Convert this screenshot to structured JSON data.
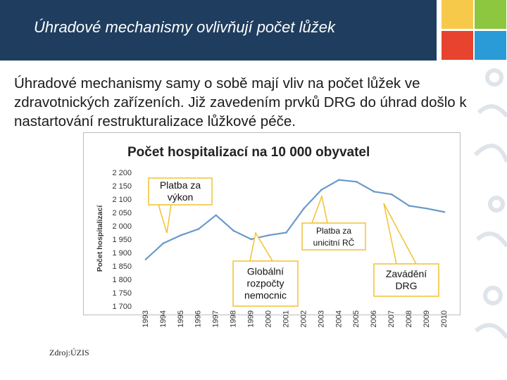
{
  "header": {
    "title": "Úhradové mechanismy ovlivňují počet lůžek"
  },
  "body": {
    "paragraph": "Úhradové mechanismy samy o sobě mají vliv na počet lůžek ve zdravotnických zařízeních. Již zavedením prvků DRG do úhrad došlo k nastartování restrukturalizace lůžkové péče."
  },
  "tiles": [
    {
      "color": "#f7c94b"
    },
    {
      "color": "#8dc63f"
    },
    {
      "color": "#e7432e"
    },
    {
      "color": "#2a9bd6"
    }
  ],
  "chart_data": {
    "type": "line",
    "title": "Počet hospitalizací na 10 000 obyvatel",
    "ylabel": "Počet hospitalizací",
    "xlabel": "",
    "ylim": [
      1700,
      2200
    ],
    "yticks": [
      "2 200",
      "2 150",
      "2 100",
      "2 050",
      "2 000",
      "1 950",
      "1 900",
      "1 850",
      "1 800",
      "1 750",
      "1 700"
    ],
    "ytick_values": [
      2200,
      2150,
      2100,
      2050,
      2000,
      1950,
      1900,
      1850,
      1800,
      1750,
      1700
    ],
    "x": [
      "1993",
      "1994",
      "1995",
      "1996",
      "1997",
      "1998",
      "1999",
      "2000",
      "2001",
      "2002",
      "2003",
      "2004",
      "2005",
      "2006",
      "2007",
      "2008",
      "2009",
      "2010"
    ],
    "series": [
      {
        "values": [
          1875,
          1935,
          1965,
          1988,
          2040,
          1982,
          1950,
          1965,
          1975,
          2065,
          2135,
          2172,
          2165,
          2128,
          2118,
          2075,
          2065,
          2052
        ],
        "color": "#6a99c9"
      }
    ],
    "grid": false,
    "legend": "none",
    "callout_color": "#f2c230",
    "annotations": [
      {
        "lines": [
          "Platba za",
          "výkon"
        ],
        "point_x": "1994",
        "point_y": 1950
      },
      {
        "lines": [
          "Platba za",
          "unicitní RČ"
        ],
        "point_x": "2003",
        "point_y": 2140
      },
      {
        "lines": [
          "Globální",
          "rozpočty",
          "nemocnic"
        ],
        "point_x": "1999",
        "point_y": 1948
      },
      {
        "lines": [
          "Zavádění",
          "DRG"
        ],
        "point_x": "2007",
        "point_y": 2118
      }
    ],
    "source": "Zdroj:ÚZIS"
  }
}
